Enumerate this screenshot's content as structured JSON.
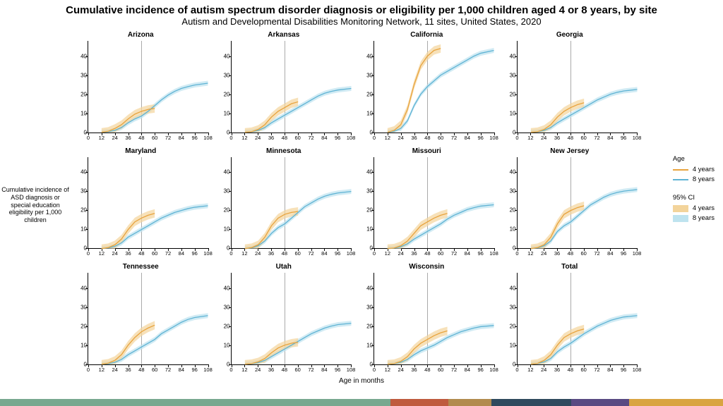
{
  "title": "Cumulative incidence of autism spectrum disorder diagnosis or eligibility per 1,000 children aged 4 or 8 years, by site",
  "subtitle": "Autism and Developmental Disabilities Monitoring Network, 11 sites, United States, 2020",
  "y_axis_label": "Cumulative incidence of ASD diagnosis or special education eligibility per 1,000 children",
  "x_axis_label": "Age in months",
  "chart": {
    "type": "small-multiples-line",
    "x_min": 0,
    "x_max": 108,
    "y_min": 0,
    "y_max": 48,
    "x_ticks": [
      0,
      12,
      24,
      36,
      48,
      60,
      72,
      84,
      96,
      108
    ],
    "y_ticks": [
      0,
      10,
      20,
      30,
      40
    ],
    "vline_x": 48,
    "vline_color": "#555555",
    "line_width": 1.3,
    "colors": {
      "age4_line": "#e8a33d",
      "age4_ci": "#f3d49b",
      "age8_line": "#5fb3d4",
      "age8_ci": "#bee3ef"
    },
    "ci_opacity": 0.7,
    "ci_half_width": {
      "age4": 2.2,
      "age8": 1.3
    },
    "panel_title_fontsize": 10,
    "tick_fontsize": 8,
    "axis_label_fontsize": 10
  },
  "legend": {
    "age_title": "Age",
    "age_items": [
      "4 years",
      "8 years"
    ],
    "ci_title": "95% CI",
    "ci_items": [
      "4 years",
      "8 years"
    ]
  },
  "panels": [
    {
      "name": "Arizona",
      "age4": {
        "x": [
          12,
          18,
          24,
          30,
          36,
          42,
          48,
          54,
          60
        ],
        "y": [
          0,
          0.5,
          2,
          4,
          7,
          9.5,
          11,
          12,
          12.5
        ]
      },
      "age8": {
        "x": [
          12,
          18,
          24,
          30,
          36,
          42,
          48,
          54,
          60,
          66,
          72,
          78,
          84,
          90,
          96,
          108
        ],
        "y": [
          0,
          0.3,
          1,
          2.5,
          5,
          7,
          8.5,
          11,
          14,
          17,
          19.5,
          21.5,
          23,
          24,
          24.8,
          25.8
        ]
      }
    },
    {
      "name": "Arkansas",
      "age4": {
        "x": [
          12,
          18,
          24,
          30,
          36,
          42,
          48,
          54,
          60
        ],
        "y": [
          0,
          0.3,
          1.5,
          4,
          8,
          11,
          13,
          15,
          16
        ]
      },
      "age8": {
        "x": [
          12,
          18,
          24,
          30,
          36,
          42,
          48,
          54,
          60,
          66,
          72,
          78,
          84,
          90,
          96,
          108
        ],
        "y": [
          0,
          0.2,
          1,
          2.5,
          5,
          7,
          9,
          11,
          13,
          15,
          17,
          19,
          20.5,
          21.5,
          22.2,
          23
        ]
      }
    },
    {
      "name": "California",
      "age4": {
        "x": [
          12,
          18,
          24,
          30,
          36,
          42,
          48,
          54,
          60
        ],
        "y": [
          0,
          1,
          4,
          12,
          25,
          35,
          40,
          43,
          44
        ]
      },
      "age8": {
        "x": [
          12,
          18,
          24,
          30,
          36,
          42,
          48,
          54,
          60,
          66,
          72,
          78,
          84,
          90,
          96,
          108
        ],
        "y": [
          0,
          0.5,
          2,
          6,
          14,
          20,
          24,
          27,
          30,
          32,
          34,
          36,
          38,
          40,
          41.5,
          43
        ]
      }
    },
    {
      "name": "Georgia",
      "age4": {
        "x": [
          12,
          18,
          24,
          30,
          36,
          42,
          48,
          54,
          60
        ],
        "y": [
          0,
          0.3,
          1.5,
          4,
          8,
          11,
          13,
          14.5,
          15.5
        ]
      },
      "age8": {
        "x": [
          12,
          18,
          24,
          30,
          36,
          42,
          48,
          54,
          60,
          66,
          72,
          78,
          84,
          90,
          96,
          108
        ],
        "y": [
          0,
          0.2,
          1,
          2.5,
          5,
          7,
          9,
          11,
          13,
          15,
          17,
          18.5,
          20,
          21,
          21.7,
          22.5
        ]
      }
    },
    {
      "name": "Maryland",
      "age4": {
        "x": [
          12,
          18,
          24,
          30,
          36,
          42,
          48,
          54,
          60
        ],
        "y": [
          0,
          0.5,
          2,
          5,
          10,
          14,
          16,
          17.5,
          18.5
        ]
      },
      "age8": {
        "x": [
          12,
          18,
          24,
          30,
          36,
          42,
          48,
          54,
          60,
          66,
          72,
          78,
          84,
          90,
          96,
          108
        ],
        "y": [
          0,
          0.3,
          1.2,
          3,
          6,
          8,
          10,
          12,
          14,
          16,
          17.5,
          19,
          20,
          21,
          21.7,
          22.5
        ]
      }
    },
    {
      "name": "Minnesota",
      "age4": {
        "x": [
          12,
          18,
          24,
          30,
          36,
          42,
          48,
          54,
          60
        ],
        "y": [
          0,
          0.5,
          2,
          6,
          12,
          16,
          18,
          19,
          19.5
        ]
      },
      "age8": {
        "x": [
          12,
          18,
          24,
          30,
          36,
          42,
          48,
          54,
          60,
          66,
          72,
          78,
          84,
          90,
          96,
          108
        ],
        "y": [
          0,
          0.3,
          1.5,
          4,
          8,
          11,
          13,
          16,
          19,
          22,
          24,
          26,
          27.5,
          28.5,
          29.2,
          30
        ]
      }
    },
    {
      "name": "Missouri",
      "age4": {
        "x": [
          12,
          18,
          24,
          30,
          36,
          42,
          48,
          54,
          60,
          66
        ],
        "y": [
          0,
          0.3,
          1.5,
          4,
          8,
          12,
          14,
          16,
          17.5,
          18.5
        ]
      },
      "age8": {
        "x": [
          12,
          18,
          24,
          30,
          36,
          42,
          48,
          54,
          60,
          66,
          72,
          78,
          84,
          90,
          96,
          108
        ],
        "y": [
          0,
          0.2,
          1,
          2.5,
          5,
          7,
          9,
          11,
          13,
          15.5,
          17.5,
          19,
          20.5,
          21.5,
          22.3,
          23
        ]
      }
    },
    {
      "name": "New Jersey",
      "age4": {
        "x": [
          12,
          18,
          24,
          30,
          36,
          42,
          48,
          54,
          60
        ],
        "y": [
          0,
          0.5,
          2,
          6,
          13,
          18,
          20,
          21.5,
          22.5
        ]
      },
      "age8": {
        "x": [
          12,
          18,
          24,
          30,
          36,
          42,
          48,
          54,
          60,
          66,
          72,
          78,
          84,
          90,
          96,
          108
        ],
        "y": [
          0,
          0.3,
          1.5,
          4,
          9,
          12,
          14,
          17,
          20,
          23,
          25,
          27,
          28.5,
          29.5,
          30.2,
          31
        ]
      }
    },
    {
      "name": "Tennessee",
      "age4": {
        "x": [
          12,
          18,
          24,
          30,
          36,
          42,
          48,
          54,
          60
        ],
        "y": [
          0,
          0.5,
          2,
          5,
          10,
          14,
          17,
          19,
          20.5
        ]
      },
      "age8": {
        "x": [
          12,
          18,
          24,
          30,
          36,
          42,
          48,
          54,
          60,
          66,
          72,
          78,
          84,
          90,
          96,
          108
        ],
        "y": [
          0,
          0.2,
          1,
          2.5,
          5,
          7,
          9,
          11,
          13,
          16,
          18,
          20,
          22,
          23.5,
          24.5,
          25.5
        ]
      }
    },
    {
      "name": "Utah",
      "age4": {
        "x": [
          12,
          18,
          24,
          30,
          36,
          42,
          48,
          54,
          60
        ],
        "y": [
          0,
          0.3,
          1.2,
          3,
          6,
          8.5,
          10,
          11,
          11.5
        ]
      },
      "age8": {
        "x": [
          12,
          18,
          24,
          30,
          36,
          42,
          48,
          54,
          60,
          66,
          72,
          78,
          84,
          90,
          96,
          108
        ],
        "y": [
          0,
          0.2,
          0.8,
          2,
          4,
          6,
          8,
          10,
          12,
          14,
          16,
          17.5,
          19,
          20,
          20.8,
          21.5
        ]
      }
    },
    {
      "name": "Wisconsin",
      "age4": {
        "x": [
          12,
          18,
          24,
          30,
          36,
          42,
          48,
          54,
          60,
          66
        ],
        "y": [
          0,
          0.3,
          1.5,
          4,
          8,
          11,
          13,
          15,
          16.5,
          17.5
        ]
      },
      "age8": {
        "x": [
          12,
          18,
          24,
          30,
          36,
          42,
          48,
          54,
          60,
          66,
          72,
          78,
          84,
          90,
          96,
          108
        ],
        "y": [
          0,
          0.2,
          1,
          2.5,
          5,
          7,
          8.5,
          10,
          12,
          14,
          15.5,
          17,
          18,
          19,
          19.7,
          20.3
        ]
      }
    },
    {
      "name": "Total",
      "age4": {
        "x": [
          12,
          18,
          24,
          30,
          36,
          42,
          48,
          54,
          60
        ],
        "y": [
          0,
          0.4,
          2,
          5,
          10,
          14,
          16,
          17.5,
          18.5
        ]
      },
      "age8": {
        "x": [
          12,
          18,
          24,
          30,
          36,
          42,
          48,
          54,
          60,
          66,
          72,
          78,
          84,
          90,
          96,
          108
        ],
        "y": [
          0,
          0.3,
          1.2,
          3,
          6.5,
          9,
          11,
          13.5,
          16,
          18,
          20,
          21.5,
          23,
          24,
          24.8,
          25.5
        ]
      }
    }
  ],
  "footer_stripe": {
    "segments": [
      {
        "color": "#78a88f",
        "width": 54
      },
      {
        "color": "#bf5b3e",
        "width": 8
      },
      {
        "color": "#b28b4e",
        "width": 6
      },
      {
        "color": "#2f4a5e",
        "width": 11
      },
      {
        "color": "#594a82",
        "width": 8
      },
      {
        "color": "#d9a441",
        "width": 13
      }
    ]
  }
}
